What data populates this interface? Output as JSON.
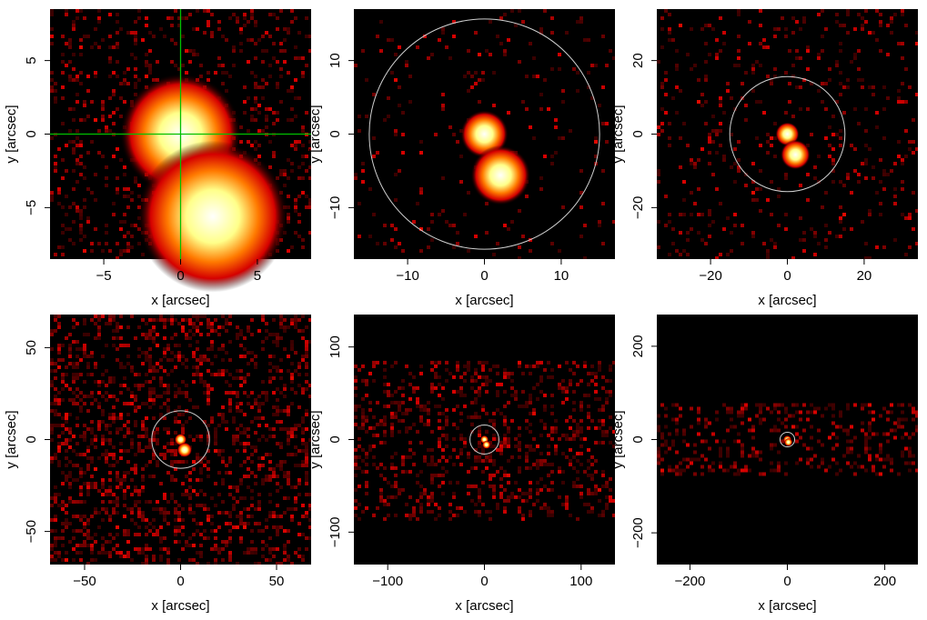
{
  "chart_data": [
    {
      "type": "heatmap",
      "xlabel": "x [arcsec]",
      "ylabel": "y [arcsec]",
      "xlim": [
        -8.5,
        8.5
      ],
      "ylim": [
        -8.5,
        8.5
      ],
      "xticks": [
        -5,
        0,
        5
      ],
      "yticks": [
        -5,
        0,
        5
      ],
      "colormap": "black-red-yellow-white",
      "background": "#000000",
      "sources": [
        {
          "x": 0.0,
          "y": 0.0,
          "radius": 0.8,
          "peak": 1.0
        },
        {
          "x": 2.1,
          "y": -5.6,
          "radius": 1.0,
          "peak": 1.0
        }
      ],
      "crosshair": {
        "x": 0,
        "y": 0,
        "color": "#00c000"
      },
      "noise_level": 0.18,
      "grid": false
    },
    {
      "type": "heatmap",
      "xlabel": "x [arcsec]",
      "ylabel": "y [arcsec]",
      "xlim": [
        -17,
        17
      ],
      "ylim": [
        -17,
        17
      ],
      "xticks": [
        -10,
        0,
        10
      ],
      "yticks": [
        -10,
        0,
        10
      ],
      "colormap": "black-red-yellow-white",
      "background": "#000000",
      "sources": [
        {
          "x": 0.0,
          "y": 0.0,
          "radius": 0.8,
          "peak": 1.0
        },
        {
          "x": 2.1,
          "y": -5.6,
          "radius": 1.0,
          "peak": 1.0
        }
      ],
      "aperture": {
        "x": 0,
        "y": 0,
        "radius": 15,
        "color": "#cfcfcf"
      },
      "noise_level": 0.05,
      "grid": false
    },
    {
      "type": "heatmap",
      "xlabel": "x [arcsec]",
      "ylabel": "y [arcsec]",
      "xlim": [
        -34,
        34
      ],
      "ylim": [
        -34,
        34
      ],
      "xticks": [
        -20,
        0,
        20
      ],
      "yticks": [
        -20,
        0,
        20
      ],
      "colormap": "black-red-yellow-white",
      "background": "#000000",
      "sources": [
        {
          "x": 0.0,
          "y": 0.0,
          "radius": 0.8,
          "peak": 1.0
        },
        {
          "x": 2.1,
          "y": -5.6,
          "radius": 1.0,
          "peak": 1.0
        }
      ],
      "aperture": {
        "x": 0,
        "y": 0,
        "radius": 15,
        "color": "#cfcfcf"
      },
      "noise_level": 0.1,
      "grid": false
    },
    {
      "type": "heatmap",
      "xlabel": "x [arcsec]",
      "ylabel": "y [arcsec]",
      "xlim": [
        -68,
        68
      ],
      "ylim": [
        -68,
        68
      ],
      "xticks": [
        -50,
        0,
        50
      ],
      "yticks": [
        -50,
        0,
        50
      ],
      "colormap": "black-red-yellow-white",
      "background": "#000000",
      "sources": [
        {
          "x": 0.0,
          "y": 0.0,
          "radius": 0.8,
          "peak": 1.0
        },
        {
          "x": 2.1,
          "y": -5.6,
          "radius": 1.0,
          "peak": 1.0
        }
      ],
      "aperture": {
        "x": 0,
        "y": 0,
        "radius": 15,
        "color": "#cfcfcf"
      },
      "noise_level": 0.35,
      "grid": false
    },
    {
      "type": "heatmap",
      "xlabel": "x [arcsec]",
      "ylabel": "y [arcsec]",
      "xlim": [
        -135,
        135
      ],
      "ylim": [
        -135,
        135
      ],
      "xticks": [
        -100,
        0,
        100
      ],
      "yticks": [
        -100,
        0,
        100
      ],
      "colormap": "black-red-yellow-white",
      "background": "#000000",
      "sources": [
        {
          "x": 0.0,
          "y": 0.0,
          "radius": 0.8,
          "peak": 1.0
        },
        {
          "x": 2.1,
          "y": -5.6,
          "radius": 1.0,
          "peak": 1.0
        }
      ],
      "aperture": {
        "x": 0,
        "y": 0,
        "radius": 15,
        "color": "#cfcfcf"
      },
      "coverage_band": {
        "y_min": -85,
        "y_max": 85
      },
      "noise_level": 0.3,
      "grid": false
    },
    {
      "type": "heatmap",
      "xlabel": "x [arcsec]",
      "ylabel": "y [arcsec]",
      "xlim": [
        -268,
        268
      ],
      "ylim": [
        -268,
        268
      ],
      "xticks": [
        -200,
        0,
        200
      ],
      "yticks": [
        -200,
        0,
        200
      ],
      "colormap": "black-red-yellow-white",
      "background": "#000000",
      "sources": [
        {
          "x": 0.0,
          "y": 0.0,
          "radius": 0.8,
          "peak": 1.0
        },
        {
          "x": 2.1,
          "y": -5.6,
          "radius": 1.0,
          "peak": 1.0
        }
      ],
      "aperture": {
        "x": 0,
        "y": 0,
        "radius": 15,
        "color": "#cfcfcf"
      },
      "coverage_band": {
        "y_min": -78,
        "y_max": 78
      },
      "noise_level": 0.3,
      "grid": false
    }
  ]
}
